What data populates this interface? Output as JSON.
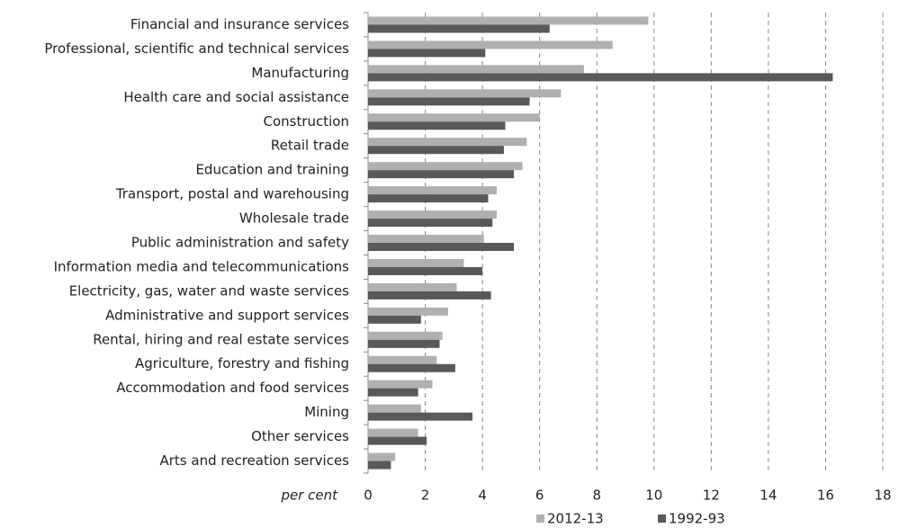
{
  "chart_data": {
    "type": "bar",
    "orientation": "horizontal",
    "xlabel": "per cent",
    "categories": [
      "Financial and insurance services",
      "Professional, scientific and technical services",
      "Manufacturing",
      "Health care and social assistance",
      "Construction",
      "Retail trade",
      "Education and training",
      "Transport, postal and warehousing",
      "Wholesale trade",
      "Public administration and safety",
      "Information media and telecommunications",
      "Electricity, gas, water and waste services",
      "Administrative and support services",
      "Rental, hiring and real estate services",
      "Agriculture, forestry and fishing",
      "Accommodation and food services",
      "Mining",
      "Other services",
      "Arts and recreation services"
    ],
    "series": [
      {
        "name": "2012-13",
        "color": "#b0b0b0",
        "values": [
          9.8,
          8.55,
          7.55,
          6.75,
          6.0,
          5.55,
          5.4,
          4.5,
          4.5,
          4.05,
          3.35,
          3.1,
          2.8,
          2.6,
          2.4,
          2.25,
          1.85,
          1.75,
          0.95
        ]
      },
      {
        "name": "1992-93",
        "color": "#595959",
        "values": [
          6.35,
          4.1,
          16.25,
          5.65,
          4.8,
          4.75,
          5.1,
          4.2,
          4.35,
          5.1,
          4.0,
          4.3,
          1.85,
          2.5,
          3.05,
          1.75,
          3.65,
          2.05,
          0.8
        ]
      }
    ],
    "xlim": [
      0,
      18
    ],
    "xticks": [
      0,
      2,
      4,
      6,
      8,
      10,
      12,
      14,
      16,
      18
    ],
    "grid": true,
    "legend": "bottom"
  }
}
